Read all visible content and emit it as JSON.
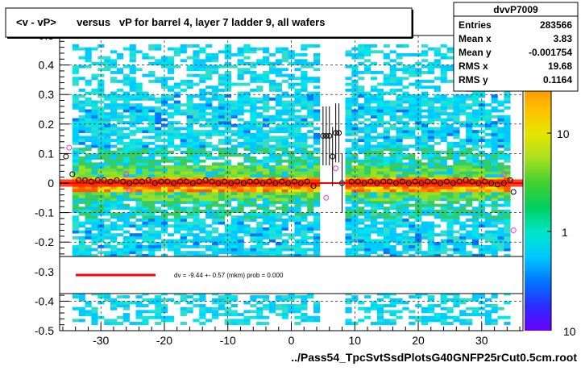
{
  "chart_data": {
    "type": "heatmap",
    "title": "<v - vP>       versus   vP for barrel 4, layer 7 ladder 9, all wafers",
    "xlabel": "../Pass54_TpcSvtSsdPlotsG40GNFP25rCut0.5cm.root",
    "ylabel": "",
    "xlim": [
      -36.5,
      36.5
    ],
    "ylim": [
      -0.5,
      0.5
    ],
    "x_ticks": [
      -30,
      -20,
      -10,
      0,
      10,
      20,
      30
    ],
    "y_ticks": [
      -0.5,
      -0.4,
      -0.3,
      -0.2,
      -0.1,
      0,
      0.1,
      0.2,
      0.3,
      0.4,
      0.5
    ],
    "x_tick_labels": [
      "-30",
      "-20",
      "-10",
      "0",
      "10",
      "20",
      "30"
    ],
    "y_tick_labels": [
      "-0.5",
      "-0.4",
      "-0.3",
      "-0.2",
      "-0.1",
      "0",
      "0.1",
      "0.2",
      "0.3",
      "0.4",
      "0.5"
    ],
    "grid": true,
    "colorbar": {
      "scale": "log",
      "tick_labels": [
        "1",
        "10",
        "10"
      ],
      "stops": [
        "#6a00ff",
        "#2b2bff",
        "#0077ff",
        "#00c8ff",
        "#00e6c8",
        "#00d060",
        "#40d030",
        "#a8e020",
        "#e6e600",
        "#ffc000",
        "#ff9000",
        "#ff5a00",
        "#ff2000"
      ]
    },
    "gap_x": [
      4.5,
      8.5
    ],
    "band_y": [
      -0.0125,
      0.0125
    ],
    "stats": {
      "name": "dvvP7009",
      "rows": [
        {
          "label": "Entries",
          "value": "283566"
        },
        {
          "label": "Mean x",
          "value": "3.83"
        },
        {
          "label": "Mean y",
          "value": "-0.001754"
        },
        {
          "label": "RMS x",
          "value": "19.68"
        },
        {
          "label": "RMS y",
          "value": "0.1164"
        }
      ]
    },
    "legend": {
      "text": "dv =   -9.44 +-  0.57 (mkm) prob = 0.000",
      "line_color": "#ff0000"
    },
    "fit_line": {
      "y": 0.0,
      "color": "#ff0000"
    },
    "series": [
      {
        "name": "",
        "x": [
          -35.5,
          -34.5,
          -33.5,
          -32.5,
          -31.5,
          -30.5,
          -29.5,
          -28.5,
          -27.5,
          -26.5,
          -25.5,
          -24.5,
          -23.5,
          -22.5,
          -21.5,
          -20.5,
          -19.5,
          -18.5,
          -17.5,
          -16.5,
          -15.5,
          -14.5,
          -13.5,
          -12.5,
          -11.5,
          -10.5,
          -9.5,
          -8.5,
          -7.5,
          -6.5,
          -5.5,
          -4.5,
          -3.5,
          -2.5,
          -1.5,
          -0.5,
          0.5,
          1.5,
          2.5,
          3.5,
          5.0,
          5.5,
          6.0,
          6.5,
          7.0,
          7.5,
          8.0,
          9.5,
          10.5,
          11.5,
          12.5,
          13.5,
          14.5,
          15.5,
          16.5,
          17.5,
          18.5,
          19.5,
          20.5,
          21.5,
          22.5,
          23.5,
          24.5,
          25.5,
          26.5,
          27.5,
          28.5,
          29.5,
          30.5,
          31.5,
          32.5,
          33.5,
          34.5,
          35.0
        ],
        "y": [
          0.09,
          0.03,
          0.01,
          0.01,
          0.005,
          0.01,
          0.01,
          0.005,
          0.01,
          0.005,
          0.0,
          0.005,
          0.005,
          0.01,
          0.0,
          0.005,
          0.005,
          0.0,
          0.005,
          0.005,
          0.0,
          0.005,
          0.01,
          0.005,
          0.0,
          0.005,
          0.0,
          0.005,
          0.0,
          0.005,
          0.005,
          0.0,
          0.005,
          0.0,
          0.005,
          0.0,
          0.005,
          0.0,
          0.005,
          -0.01,
          0.16,
          0.16,
          0.16,
          0.09,
          0.17,
          0.17,
          0.0,
          0.005,
          0.005,
          0.0,
          0.005,
          0.0,
          0.005,
          0.005,
          0.0,
          0.005,
          0.0,
          0.005,
          0.0,
          0.005,
          0.005,
          0.0,
          0.005,
          0.0,
          0.005,
          0.01,
          0.005,
          0.0,
          0.005,
          0.0,
          -0.005,
          0.0,
          0.01,
          -0.03
        ]
      }
    ],
    "extra_points_y": [
      -0.16,
      0.12,
      0.03,
      -0.025,
      0.03,
      -0.05,
      0.05
    ]
  }
}
